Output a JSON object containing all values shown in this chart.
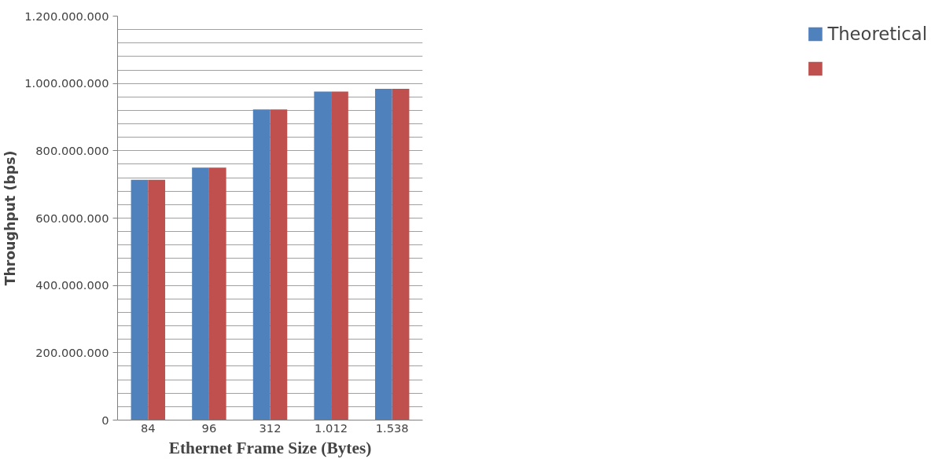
{
  "chart_data": {
    "type": "bar",
    "xlabel": "Ethernet Frame Size (Bytes)",
    "ylabel": "Throughput (bps)",
    "categories": [
      "84",
      "96",
      "312",
      "1.012",
      "1.538"
    ],
    "series": [
      {
        "name": "Theoretical",
        "color": "#4f81bd",
        "values": [
          714000000,
          750000000,
          923000000,
          976000000,
          984000000
        ]
      },
      {
        "color": "#c0504d",
        "values": [
          714000000,
          750000000,
          923000000,
          976000000,
          984000000
        ]
      }
    ],
    "ylim": [
      0,
      1200000000
    ],
    "yticks": [
      {
        "value": 0,
        "label": "0"
      },
      {
        "value": 40000000,
        "label": null
      },
      {
        "value": 80000000,
        "label": null
      },
      {
        "value": 120000000,
        "label": null
      },
      {
        "value": 160000000,
        "label": null
      },
      {
        "value": 200000000,
        "label": "200.000.000"
      },
      {
        "value": 240000000,
        "label": null
      },
      {
        "value": 280000000,
        "label": null
      },
      {
        "value": 320000000,
        "label": null
      },
      {
        "value": 360000000,
        "label": null
      },
      {
        "value": 400000000,
        "label": "400.000.000"
      },
      {
        "value": 440000000,
        "label": null
      },
      {
        "value": 480000000,
        "label": null
      },
      {
        "value": 520000000,
        "label": null
      },
      {
        "value": 560000000,
        "label": null
      },
      {
        "value": 600000000,
        "label": "600.000.000"
      },
      {
        "value": 640000000,
        "label": null
      },
      {
        "value": 680000000,
        "label": null
      },
      {
        "value": 720000000,
        "label": null
      },
      {
        "value": 760000000,
        "label": null
      },
      {
        "value": 800000000,
        "label": "800.000.000"
      },
      {
        "value": 840000000,
        "label": null
      },
      {
        "value": 880000000,
        "label": null
      },
      {
        "value": 920000000,
        "label": null
      },
      {
        "value": 960000000,
        "label": null
      },
      {
        "value": 1000000000,
        "label": "1.000.000.000"
      },
      {
        "value": 1040000000,
        "label": null
      },
      {
        "value": 1080000000,
        "label": null
      },
      {
        "value": 1120000000,
        "label": null
      },
      {
        "value": 1160000000,
        "label": null
      },
      {
        "value": 1200000000,
        "label": "1.200.000.000"
      }
    ],
    "grid": "y",
    "legend": "right"
  }
}
